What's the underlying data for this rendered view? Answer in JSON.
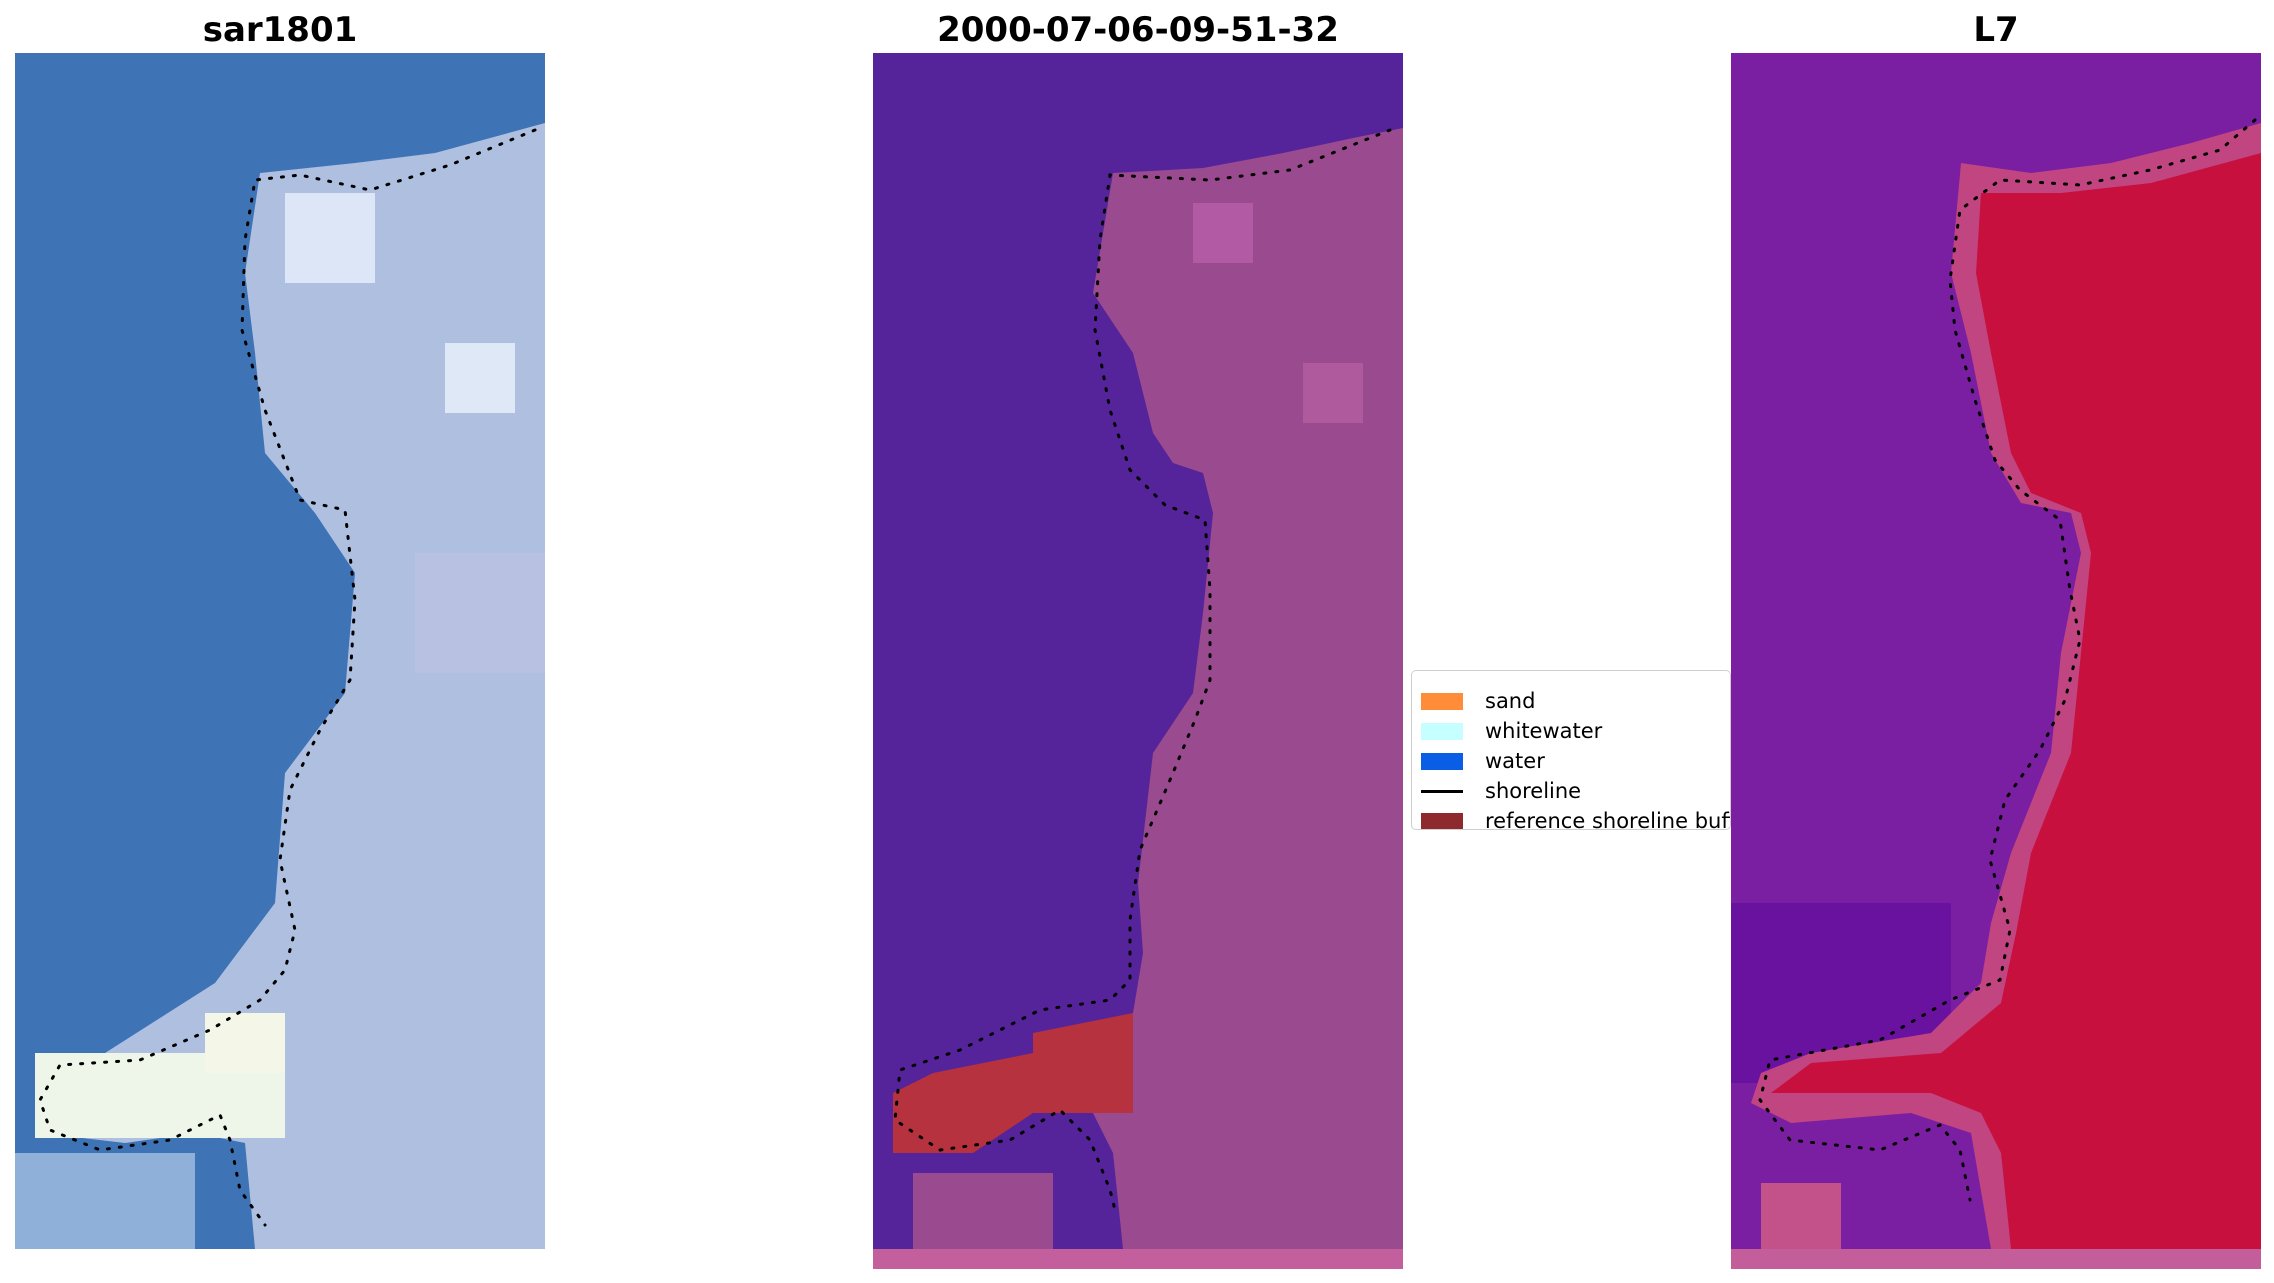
{
  "panels": [
    {
      "title": "sar1801",
      "kind": "rgb"
    },
    {
      "title": "2000-07-06-09-51-32",
      "kind": "classified"
    },
    {
      "title": "L7",
      "kind": "mndwi"
    }
  ],
  "legend": {
    "items": [
      {
        "label": "sand",
        "type": "patch",
        "color": "#ff8c39"
      },
      {
        "label": "whitewater",
        "type": "patch",
        "color": "#c6ffff"
      },
      {
        "label": "water",
        "type": "patch",
        "color": "#0a5ee6"
      },
      {
        "label": "shoreline",
        "type": "line",
        "color": "#000000"
      },
      {
        "label": "reference shoreline buffer",
        "type": "patch",
        "color": "#8e2a2e"
      }
    ]
  },
  "colors": {
    "ocean_blue": "#3e73b5",
    "land_light": "#b8c8e6",
    "classified_water": "#55239a",
    "classified_land": "#9a4a8e",
    "buffer_red": "#b5323e",
    "mndwi_water": "#7a1fa2",
    "mndwi_land": "#c8103f",
    "shoreline": "#000000"
  }
}
